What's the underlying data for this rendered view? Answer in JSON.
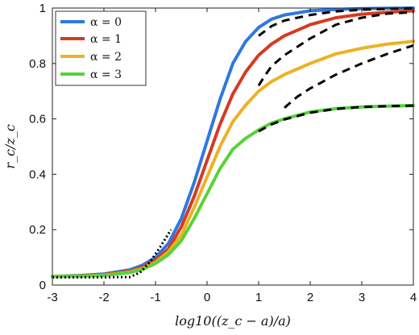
{
  "chart_data": {
    "type": "line",
    "xlim": [
      -3,
      4
    ],
    "ylim": [
      0,
      1
    ],
    "xticks": [
      "-3",
      "-2",
      "-1",
      "0",
      "1",
      "2",
      "3",
      "4"
    ],
    "yticks": [
      "0",
      "0.2",
      "0.4",
      "0.6",
      "0.8",
      "1"
    ],
    "xlabel": "log10((z_c − a)/a)",
    "ylabel": "r_c/z_c",
    "grid": false,
    "legend_position": "top-left",
    "series": [
      {
        "name": "α = 0",
        "color": "#2f78e0",
        "x": [
          -3.0,
          -2.5,
          -2.0,
          -1.5,
          -1.25,
          -1.0,
          -0.75,
          -0.5,
          -0.25,
          0.0,
          0.25,
          0.5,
          0.75,
          1.0,
          1.25,
          1.5,
          2.0,
          2.5,
          3.0,
          3.5,
          4.0
        ],
        "y": [
          0.031,
          0.034,
          0.04,
          0.055,
          0.072,
          0.1,
          0.15,
          0.24,
          0.37,
          0.52,
          0.67,
          0.8,
          0.88,
          0.93,
          0.96,
          0.975,
          0.99,
          0.995,
          0.998,
          0.999,
          1.0
        ]
      },
      {
        "name": "α = 1",
        "color": "#d63a1f",
        "x": [
          -3.0,
          -2.5,
          -2.0,
          -1.5,
          -1.25,
          -1.0,
          -0.75,
          -0.5,
          -0.25,
          0.0,
          0.25,
          0.5,
          0.75,
          1.0,
          1.25,
          1.5,
          2.0,
          2.5,
          3.0,
          3.5,
          4.0
        ],
        "y": [
          0.031,
          0.033,
          0.038,
          0.05,
          0.065,
          0.09,
          0.13,
          0.21,
          0.32,
          0.45,
          0.58,
          0.69,
          0.77,
          0.83,
          0.87,
          0.9,
          0.94,
          0.965,
          0.978,
          0.985,
          0.99
        ]
      },
      {
        "name": "α = 2",
        "color": "#edb125",
        "x": [
          -3.0,
          -2.5,
          -2.0,
          -1.5,
          -1.25,
          -1.0,
          -0.75,
          -0.5,
          -0.25,
          0.0,
          0.25,
          0.5,
          0.75,
          1.0,
          1.25,
          1.5,
          2.0,
          2.5,
          3.0,
          3.5,
          4.0
        ],
        "y": [
          0.031,
          0.032,
          0.036,
          0.047,
          0.06,
          0.082,
          0.12,
          0.18,
          0.28,
          0.39,
          0.5,
          0.59,
          0.65,
          0.7,
          0.735,
          0.76,
          0.8,
          0.835,
          0.855,
          0.87,
          0.88
        ]
      },
      {
        "name": "α = 3",
        "color": "#58d23a",
        "x": [
          -3.0,
          -2.5,
          -2.0,
          -1.5,
          -1.25,
          -1.0,
          -0.75,
          -0.5,
          -0.25,
          0.0,
          0.25,
          0.5,
          0.75,
          1.0,
          1.25,
          1.5,
          2.0,
          2.5,
          3.0,
          3.5,
          4.0
        ],
        "y": [
          0.031,
          0.032,
          0.035,
          0.045,
          0.057,
          0.078,
          0.11,
          0.16,
          0.24,
          0.33,
          0.42,
          0.49,
          0.53,
          0.56,
          0.585,
          0.6,
          0.625,
          0.637,
          0.643,
          0.646,
          0.648
        ]
      }
    ],
    "dashed_curves": [
      {
        "x": [
          1.0,
          1.25,
          1.5,
          2.0,
          2.5,
          3.0,
          3.5,
          4.0
        ],
        "y": [
          0.9,
          0.935,
          0.955,
          0.975,
          0.988,
          0.994,
          0.997,
          0.999
        ]
      },
      {
        "x": [
          1.0,
          1.1,
          1.25,
          1.5,
          2.0,
          2.5,
          3.0,
          3.5,
          4.0
        ],
        "y": [
          0.72,
          0.75,
          0.79,
          0.83,
          0.89,
          0.94,
          0.965,
          0.98,
          0.985
        ]
      },
      {
        "x": [
          1.5,
          1.75,
          2.0,
          2.5,
          3.0,
          3.5,
          4.0
        ],
        "y": [
          0.64,
          0.68,
          0.71,
          0.76,
          0.8,
          0.835,
          0.865
        ]
      },
      {
        "x": [
          1.0,
          1.25,
          1.5,
          2.0,
          2.5,
          3.0,
          3.5,
          4.0
        ],
        "y": [
          0.555,
          0.58,
          0.598,
          0.622,
          0.636,
          0.643,
          0.646,
          0.648
        ]
      }
    ],
    "dotted_curve": {
      "x": [
        -3.0,
        -2.5,
        -2.0,
        -1.5,
        -1.3,
        -1.1,
        -0.9,
        -0.7
      ],
      "y": [
        0.028,
        0.028,
        0.028,
        0.029,
        0.045,
        0.085,
        0.14,
        0.2
      ]
    }
  }
}
